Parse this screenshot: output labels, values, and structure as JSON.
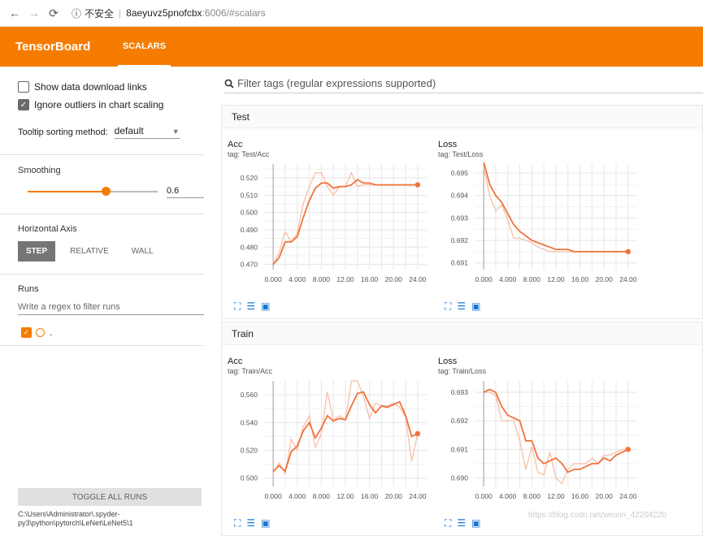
{
  "browser": {
    "back_icon": "arrow-left-icon",
    "forward_icon": "arrow-right-icon",
    "reload_icon": "reload-icon",
    "security_label": "不安全",
    "url_host": "8aeyuvz5pnofcbx",
    "url_path": ":6006/#scalars"
  },
  "header": {
    "brand": "TensorBoard",
    "tab": "SCALARS"
  },
  "sidebar": {
    "show_download": "Show data download links",
    "ignore_outliers": "Ignore outliers in chart scaling",
    "tooltip_label": "Tooltip sorting method:",
    "tooltip_value": "default",
    "smoothing_title": "Smoothing",
    "smoothing_value": "0.6",
    "smoothing_level": 0.6,
    "haxis_title": "Horizontal Axis",
    "haxis_options": [
      "STEP",
      "RELATIVE",
      "WALL"
    ],
    "runs_title": "Runs",
    "runs_placeholder": "Write a regex to filter runs",
    "run_name": ".",
    "toggle_runs": "TOGGLE ALL RUNS",
    "logdir": "C:\\Users\\Administrator\\.spyder-py3\\python\\pytorch\\LeNet\\LeNet5\\1"
  },
  "main": {
    "filter_placeholder": "Filter tags (regular expressions supported)",
    "groups": [
      {
        "title": "Test"
      },
      {
        "title": "Train"
      }
    ]
  },
  "colors": {
    "accent": "#f57c00",
    "smoothed": "#f0733d",
    "raw": "#f7c3ad"
  },
  "watermark": "https://blog.csdn.net/weixin_42204220",
  "chart_data": [
    {
      "type": "line",
      "title": "Acc",
      "tag": "tag: Test/Acc",
      "xticks": [
        "0.000",
        "4.000",
        "8.000",
        "12.00",
        "16.00",
        "20.00",
        "24.00"
      ],
      "yticks": [
        "0.470",
        "0.480",
        "0.490",
        "0.500",
        "0.510",
        "0.520"
      ],
      "xlim": [
        -1.5,
        25.5
      ],
      "ylim": [
        0.467,
        0.528
      ],
      "x": [
        0,
        1,
        2,
        3,
        4,
        5,
        6,
        7,
        8,
        9,
        10,
        11,
        12,
        13,
        14,
        15,
        16,
        17,
        18,
        19,
        20,
        21,
        22,
        23,
        24
      ],
      "raw": [
        0.47,
        0.477,
        0.489,
        0.483,
        0.488,
        0.505,
        0.515,
        0.523,
        0.523,
        0.515,
        0.51,
        0.515,
        0.515,
        0.523,
        0.515,
        0.516,
        0.516,
        0.516,
        0.516,
        0.516,
        0.516,
        0.516,
        0.516,
        0.516,
        0.516
      ],
      "smoothed": [
        0.47,
        0.474,
        0.483,
        0.483,
        0.486,
        0.497,
        0.507,
        0.514,
        0.517,
        0.517,
        0.514,
        0.515,
        0.515,
        0.516,
        0.519,
        0.517,
        0.517,
        0.516,
        0.516,
        0.516,
        0.516,
        0.516,
        0.516,
        0.516,
        0.516
      ]
    },
    {
      "type": "line",
      "title": "Loss",
      "tag": "tag: Test/Loss",
      "xticks": [
        "0.000",
        "4.000",
        "8.000",
        "12.00",
        "16.00",
        "20.00",
        "24.00"
      ],
      "yticks": [
        "0.691",
        "0.692",
        "0.693",
        "0.694",
        "0.695"
      ],
      "xlim": [
        -1.5,
        25.5
      ],
      "ylim": [
        0.6907,
        0.6954
      ],
      "x": [
        0,
        1,
        2,
        3,
        4,
        5,
        6,
        7,
        8,
        9,
        10,
        11,
        12,
        13,
        14,
        15,
        16,
        17,
        18,
        19,
        20,
        21,
        22,
        23,
        24
      ],
      "raw": [
        0.6953,
        0.694,
        0.6933,
        0.6936,
        0.6929,
        0.6921,
        0.6921,
        0.692,
        0.6919,
        0.6917,
        0.6916,
        0.6915,
        0.6915,
        0.6915,
        0.6915,
        0.6915,
        0.6915,
        0.6915,
        0.6915,
        0.6915,
        0.6915,
        0.6915,
        0.6915,
        0.6915,
        0.6915
      ],
      "smoothed": [
        0.6955,
        0.6945,
        0.694,
        0.6937,
        0.6932,
        0.6927,
        0.6924,
        0.6922,
        0.692,
        0.6919,
        0.6918,
        0.6917,
        0.6916,
        0.6916,
        0.6916,
        0.6915,
        0.6915,
        0.6915,
        0.6915,
        0.6915,
        0.6915,
        0.6915,
        0.6915,
        0.6915,
        0.6915
      ]
    },
    {
      "type": "line",
      "title": "Acc",
      "tag": "tag: Train/Acc",
      "xticks": [
        "0.000",
        "4.000",
        "8.000",
        "12.00",
        "16.00",
        "20.00",
        "24.00"
      ],
      "yticks": [
        "0.500",
        "0.520",
        "0.540",
        "0.560"
      ],
      "xlim": [
        -1.5,
        25.5
      ],
      "ylim": [
        0.494,
        0.57
      ],
      "x": [
        0,
        1,
        2,
        3,
        4,
        5,
        6,
        7,
        8,
        9,
        10,
        11,
        12,
        13,
        14,
        15,
        16,
        17,
        18,
        19,
        20,
        21,
        22,
        23,
        24
      ],
      "raw": [
        0.503,
        0.511,
        0.503,
        0.528,
        0.52,
        0.537,
        0.545,
        0.522,
        0.532,
        0.562,
        0.542,
        0.545,
        0.542,
        0.57,
        0.57,
        0.559,
        0.543,
        0.554,
        0.552,
        0.552,
        0.554,
        0.551,
        0.544,
        0.512,
        0.532
      ],
      "smoothed": [
        0.505,
        0.509,
        0.505,
        0.519,
        0.523,
        0.534,
        0.54,
        0.529,
        0.536,
        0.545,
        0.541,
        0.543,
        0.542,
        0.552,
        0.561,
        0.562,
        0.553,
        0.547,
        0.552,
        0.551,
        0.553,
        0.555,
        0.545,
        0.53,
        0.532
      ]
    },
    {
      "type": "line",
      "title": "Loss",
      "tag": "tag: Train/Loss",
      "xticks": [
        "0.000",
        "4.000",
        "8.000",
        "12.00",
        "16.00",
        "20.00",
        "24.00"
      ],
      "yticks": [
        "0.690",
        "0.691",
        "0.692",
        "0.693"
      ],
      "xlim": [
        -1.5,
        25.5
      ],
      "ylim": [
        0.6897,
        0.6934
      ],
      "x": [
        0,
        1,
        2,
        3,
        4,
        5,
        6,
        7,
        8,
        9,
        10,
        11,
        12,
        13,
        14,
        15,
        16,
        17,
        18,
        19,
        20,
        21,
        22,
        23,
        24
      ],
      "raw": [
        0.693,
        0.693,
        0.6929,
        0.692,
        0.692,
        0.692,
        0.6913,
        0.6903,
        0.6911,
        0.6902,
        0.6901,
        0.6909,
        0.69,
        0.6898,
        0.6903,
        0.6905,
        0.6905,
        0.6905,
        0.6907,
        0.6905,
        0.6908,
        0.6908,
        0.6909,
        0.691,
        0.691
      ],
      "smoothed": [
        0.693,
        0.6931,
        0.693,
        0.6925,
        0.6922,
        0.6921,
        0.692,
        0.6913,
        0.6913,
        0.6907,
        0.6905,
        0.6906,
        0.6907,
        0.6905,
        0.6902,
        0.6903,
        0.6903,
        0.6904,
        0.6905,
        0.6905,
        0.6907,
        0.6906,
        0.6908,
        0.6909,
        0.691
      ]
    }
  ]
}
